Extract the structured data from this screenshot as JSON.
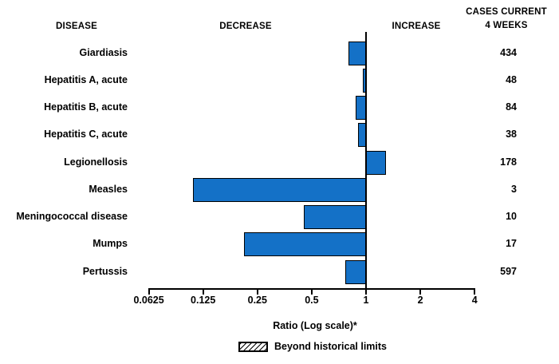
{
  "header": {
    "disease": "DISEASE",
    "decrease": "DECREASE",
    "increase": "INCREASE",
    "cases_line1": "CASES CURRENT",
    "cases_line2": "4 WEEKS"
  },
  "chart_data": {
    "type": "bar",
    "subtype": "horizontal-diverging-log",
    "baseline": 1,
    "scale": "log2",
    "categories": [
      "Giardiasis",
      "Hepatitis A, acute",
      "Hepatitis B, acute",
      "Hepatitis C, acute",
      "Legionellosis",
      "Measles",
      "Meningococcal disease",
      "Mumps",
      "Pertussis"
    ],
    "series": [
      {
        "name": "Ratio (Log scale)",
        "values": [
          0.8,
          0.98,
          0.88,
          0.9,
          1.3,
          0.11,
          0.45,
          0.21,
          0.77
        ]
      },
      {
        "name": "Cases current 4 weeks",
        "values": [
          434,
          48,
          84,
          38,
          178,
          3,
          10,
          17,
          597
        ]
      }
    ],
    "xlabel": "Ratio (Log scale)*",
    "xlim": [
      0.0625,
      4
    ],
    "tick_labels": [
      "0.0625",
      "0.125",
      "0.25",
      "0.5",
      "1",
      "2",
      "4"
    ],
    "grid": false,
    "legend_position": "bottom",
    "legend": [
      {
        "label": "Beyond historical limits",
        "swatch": "diagonal-hatch"
      }
    ],
    "bar_color": "#1471c7",
    "decrease_direction": "left",
    "increase_direction": "right"
  }
}
